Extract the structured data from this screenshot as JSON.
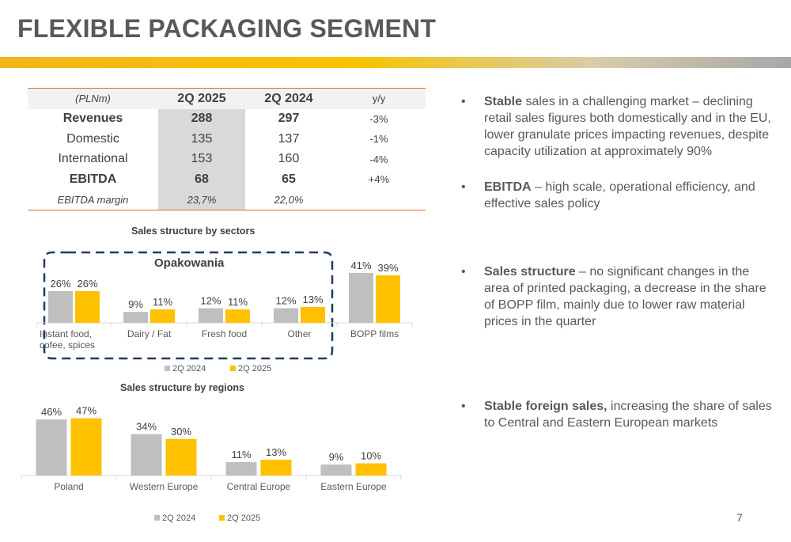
{
  "title": "FLEXIBLE PACKAGING SEGMENT",
  "page_number": "7",
  "table": {
    "header": [
      "(PLNm)",
      "2Q 2025",
      "2Q 2024",
      "y/y"
    ],
    "rows": [
      {
        "label": "Revenues",
        "v2025": "288",
        "v2024": "297",
        "yy": "-3%"
      },
      {
        "label": "Domestic",
        "v2025": "135",
        "v2024": "137",
        "yy": "-1%"
      },
      {
        "label": "International",
        "v2025": "153",
        "v2024": "160",
        "yy": "-4%"
      },
      {
        "label": "EBITDA",
        "v2025": "68",
        "v2024": "65",
        "yy": "+4%"
      },
      {
        "label": "EBITDA margin",
        "v2025": "23,7%",
        "v2024": "22,0%",
        "yy": ""
      }
    ]
  },
  "colors": {
    "series_2024": "#bfbfbf",
    "series_2025": "#ffc000",
    "accent": "#f6c400",
    "dashed_frame": "#1f3c60"
  },
  "chart_data": [
    {
      "type": "bar",
      "title": "Sales structure by sectors",
      "categories": [
        "Instant food, cofee, spices",
        "Dairy / Fat",
        "Fresh food",
        "Other",
        "BOPP films"
      ],
      "category_lines": [
        [
          "Instant food,",
          "cofee, spices"
        ],
        [
          "Dairy / Fat"
        ],
        [
          "Fresh food"
        ],
        [
          "Other"
        ],
        [
          "BOPP films"
        ]
      ],
      "series": [
        {
          "name": "2Q 2024",
          "values": [
            26,
            9,
            12,
            12,
            41
          ],
          "labels": [
            "26%",
            "9%",
            "12%",
            "12%",
            "41%"
          ]
        },
        {
          "name": "2Q 2025",
          "values": [
            26,
            11,
            11,
            13,
            39
          ],
          "labels": [
            "26%",
            "11%",
            "11%",
            "13%",
            "39%"
          ]
        }
      ],
      "group_label": "Opakowania",
      "unit": "%",
      "legend": "bottom"
    },
    {
      "type": "bar",
      "title": "Sales structure by regions",
      "categories": [
        "Poland",
        "Western Europe",
        "Central Europe",
        "Eastern Europe"
      ],
      "category_lines": [
        [
          "Poland"
        ],
        [
          "Western Europe"
        ],
        [
          "Central Europe"
        ],
        [
          "Eastern Europe"
        ]
      ],
      "series": [
        {
          "name": "2Q 2024",
          "values": [
            46,
            34,
            11,
            9
          ],
          "labels": [
            "46%",
            "34%",
            "11%",
            "9%"
          ]
        },
        {
          "name": "2Q 2025",
          "values": [
            47,
            30,
            13,
            10
          ],
          "labels": [
            "47%",
            "30%",
            "13%",
            "10%"
          ]
        }
      ],
      "unit": "%",
      "legend": "bottom"
    }
  ],
  "bullets": [
    {
      "marker": "•",
      "bold": "Stable",
      "text": " sales in a challenging market – declining retail sales figures both domestically and in the EU, lower granulate prices impacting revenues, despite capacity utilization at approximately 90%"
    },
    {
      "marker": "•",
      "bold": "EBITDA",
      "text": " – high scale, operational efficiency, and effective sales policy"
    },
    {
      "marker": "•",
      "bold": "Sales structure",
      "text": " – no significant changes in the area of printed packaging, a decrease in the share of BOPP film, mainly due to lower raw material prices in the quarter"
    },
    {
      "marker": "•",
      "bold": "Stable foreign sales,",
      "text": " increasing the share of sales to Central and Eastern European markets"
    }
  ]
}
